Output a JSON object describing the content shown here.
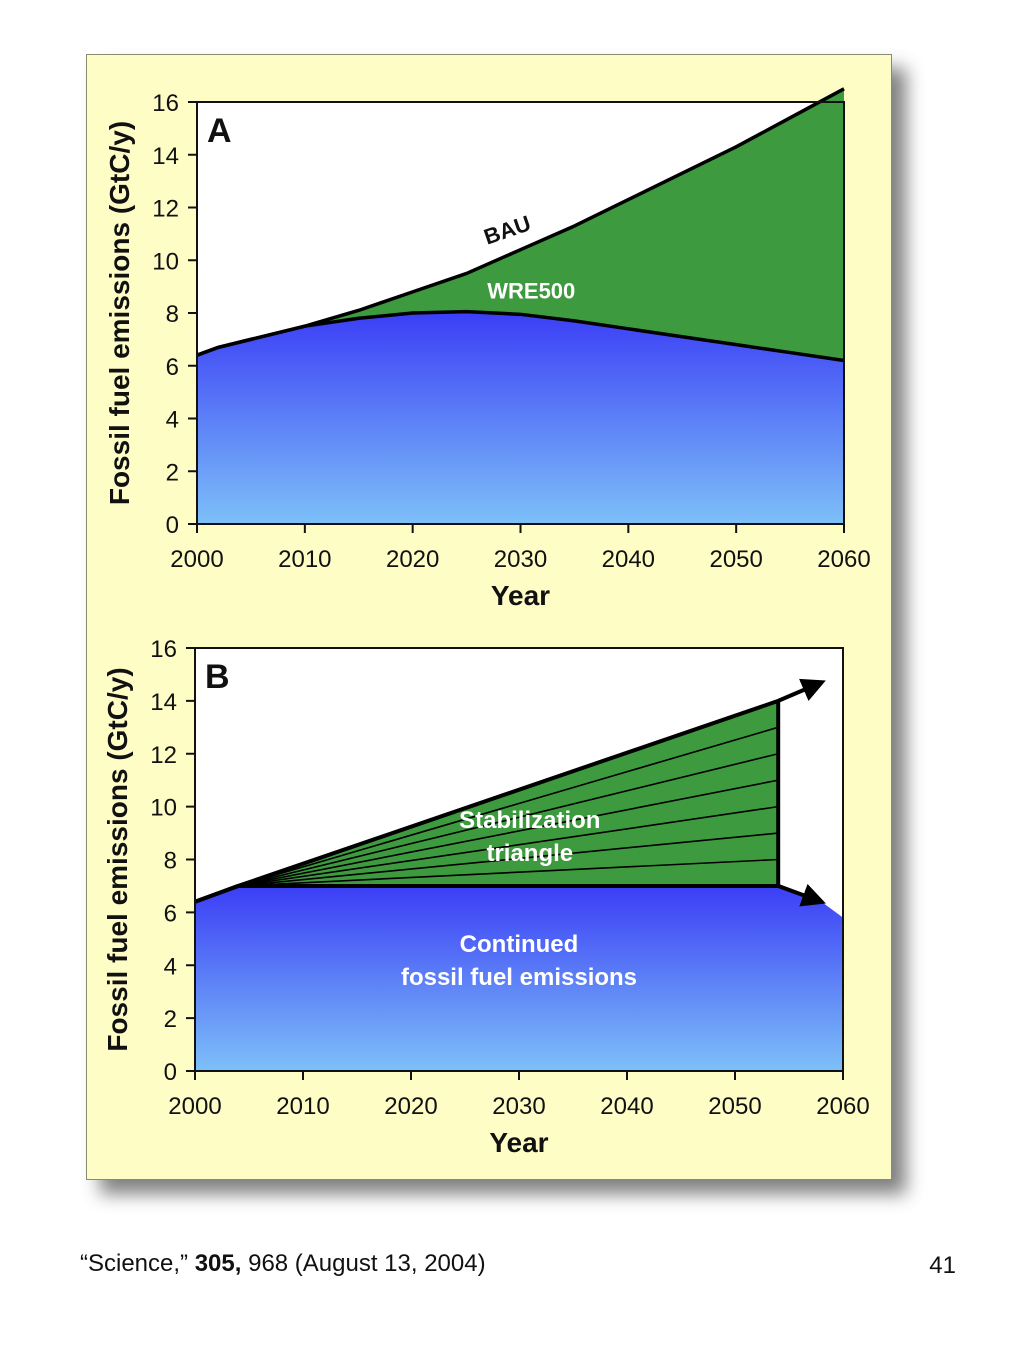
{
  "colors": {
    "panel_background": "#fefdc6",
    "green_fill": "#3d9a3e",
    "blue_top": "#3b3ef6",
    "blue_bottom": "#7dc0f8",
    "line": "#000000"
  },
  "chart_data": [
    {
      "type": "area",
      "panel_label": "A",
      "xlabel": "Year",
      "ylabel": "Fossil fuel emissions (GtC/y)",
      "xlim": [
        2000,
        2060
      ],
      "ylim": [
        0,
        16
      ],
      "x_ticks": [
        2000,
        2010,
        2020,
        2030,
        2040,
        2050,
        2060
      ],
      "y_ticks": [
        0,
        2,
        4,
        6,
        8,
        10,
        12,
        14,
        16
      ],
      "grid": false,
      "x": [
        2000,
        2002,
        2005,
        2010,
        2015,
        2020,
        2025,
        2030,
        2035,
        2040,
        2045,
        2050,
        2055,
        2060
      ],
      "series": [
        {
          "name": "BAU",
          "values": [
            6.4,
            6.7,
            7.0,
            7.5,
            8.1,
            8.8,
            9.5,
            10.4,
            11.3,
            12.3,
            13.3,
            14.3,
            15.4,
            16.5
          ]
        },
        {
          "name": "WRE500",
          "values": [
            6.4,
            6.7,
            7.0,
            7.5,
            7.8,
            8.0,
            8.05,
            7.95,
            7.7,
            7.4,
            7.1,
            6.8,
            6.5,
            6.2
          ]
        }
      ],
      "annotations": []
    },
    {
      "type": "area",
      "panel_label": "B",
      "xlabel": "Year",
      "ylabel": "Fossil fuel emissions (GtC/y)",
      "xlim": [
        2000,
        2060
      ],
      "ylim": [
        0,
        16
      ],
      "x_ticks": [
        2000,
        2010,
        2020,
        2030,
        2040,
        2050,
        2060
      ],
      "y_ticks": [
        0,
        2,
        4,
        6,
        8,
        10,
        12,
        14,
        16
      ],
      "grid": false,
      "series": [
        {
          "name": "",
          "x": [
            2000,
            2004,
            2054,
            2058
          ],
          "values": [
            6.4,
            7.0,
            14.0,
            14.7
          ]
        },
        {
          "name": "",
          "x": [
            2000,
            2004,
            2054,
            2058,
            2060
          ],
          "values": [
            6.4,
            7.0,
            7.0,
            6.4,
            5.8
          ]
        }
      ],
      "triangle": {
        "x_start": 2004,
        "x_end": 2054,
        "base": 7.0,
        "top": 14.0,
        "wedges": 7
      },
      "annotations": [
        {
          "text_lines": [
            "Stabilization",
            "triangle"
          ],
          "x": 2031,
          "y": 9.2,
          "style": "light"
        },
        {
          "text_lines": [
            "Continued",
            "fossil fuel emissions"
          ],
          "x": 2030,
          "y": 4.5,
          "style": "light"
        }
      ]
    }
  ],
  "footer": {
    "citation_prefix": "“Science,” ",
    "citation_volume": "305,",
    "citation_suffix": " 968 (August 13, 2004)",
    "page_number": "41"
  }
}
